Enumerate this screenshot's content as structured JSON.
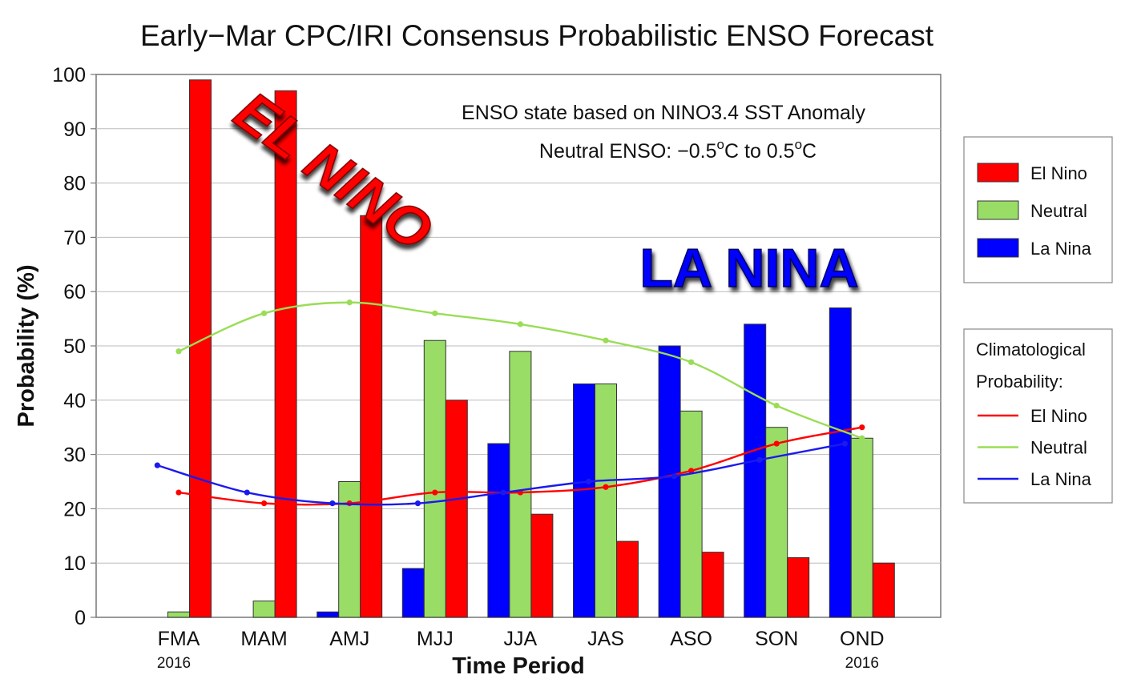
{
  "chart_data": {
    "type": "bar",
    "title": "Early−Mar CPC/IRI Consensus Probabilistic ENSO Forecast",
    "xlabel": "Time Period",
    "ylabel": "Probability (%)",
    "ylim": [
      0,
      100
    ],
    "yticks": [
      0,
      10,
      20,
      30,
      40,
      50,
      60,
      70,
      80,
      90,
      100
    ],
    "categories": [
      "FMA",
      "MAM",
      "AMJ",
      "MJJ",
      "JJA",
      "JAS",
      "ASO",
      "SON",
      "OND"
    ],
    "category_sublabels": {
      "first": "2016",
      "last": "2016"
    },
    "grid": true,
    "series": [
      {
        "name": "La Nina",
        "color": "#0000ff",
        "values": [
          0,
          0,
          1,
          9,
          32,
          43,
          50,
          54,
          57
        ]
      },
      {
        "name": "Neutral",
        "color": "#99dd66",
        "values": [
          1,
          3,
          25,
          51,
          49,
          43,
          38,
          35,
          33
        ]
      },
      {
        "name": "El Nino",
        "color": "#ff0000",
        "values": [
          99,
          97,
          74,
          40,
          19,
          14,
          12,
          11,
          10
        ]
      }
    ],
    "climatology": [
      {
        "name": "El Nino",
        "color": "#ff0000",
        "x": [
          0,
          1,
          2,
          3,
          4,
          5,
          6,
          7,
          8
        ],
        "values": [
          23,
          21,
          21,
          23,
          23,
          24,
          27,
          32,
          35
        ]
      },
      {
        "name": "Neutral",
        "color": "#99dd55",
        "x": [
          0,
          1,
          2,
          3,
          4,
          5,
          6,
          7,
          8
        ],
        "values": [
          49,
          56,
          58,
          56,
          54,
          51,
          47,
          39,
          33
        ]
      },
      {
        "name": "La Nina",
        "color": "#1a1aee",
        "x": [
          -0.25,
          0.8,
          1.8,
          2.8,
          3.8,
          4.8,
          5.8,
          6.8,
          7.8
        ],
        "values": [
          28,
          23,
          21,
          21,
          23,
          25,
          26,
          29,
          32
        ]
      }
    ],
    "annotations": {
      "line1": "ENSO state based on NINO3.4 SST Anomaly",
      "line2_prefix": "Neutral ENSO: −0.5",
      "line2_mid": "C to 0.5",
      "line2_suffix": "C",
      "degree_symbol": "o"
    },
    "overlay_labels": {
      "el_nino": "EL NINO",
      "la_nina": "LA NINA"
    },
    "legend": {
      "placement": "right",
      "items": [
        "El Nino",
        "Neutral",
        "La Nina"
      ],
      "climatology_title_1": "Climatological",
      "climatology_title_2": "Probability:",
      "climatology_items": [
        "El Nino",
        "Neutral",
        "La Nina"
      ]
    }
  }
}
